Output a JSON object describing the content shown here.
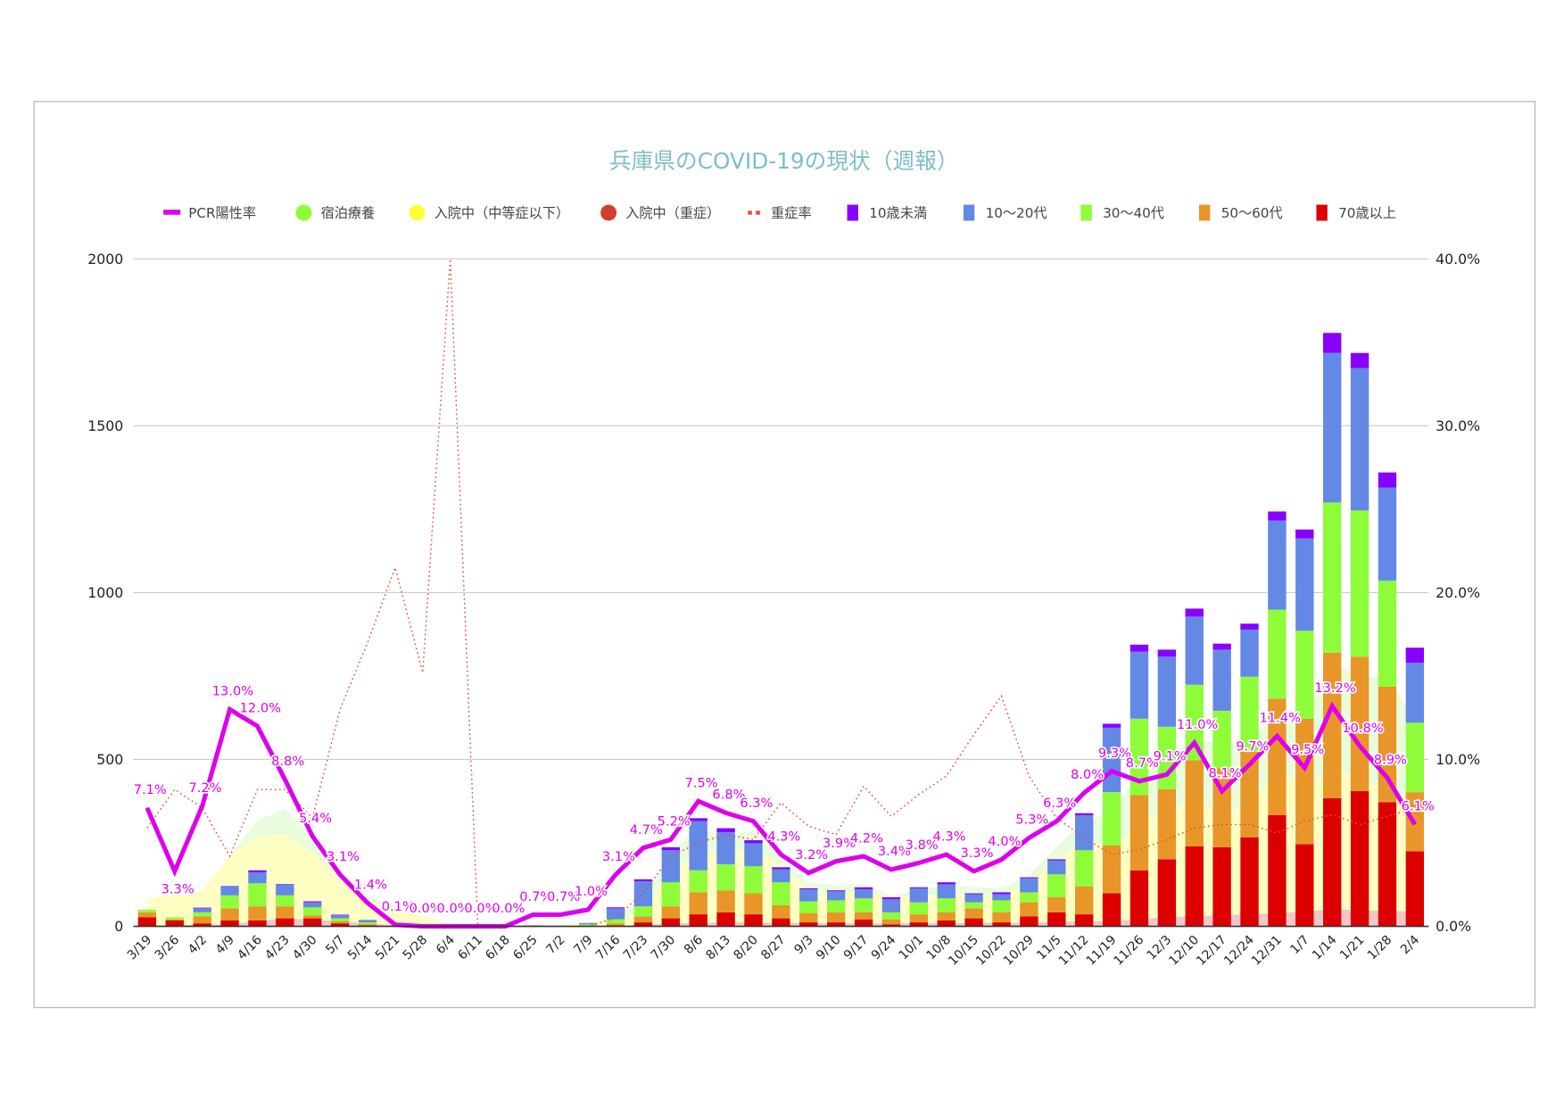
{
  "chart_data": {
    "type": "bar",
    "title": "兵庫県のCOVID-19の現状（週報）",
    "legend_position": "top",
    "grid": true,
    "categories": [
      "3/19",
      "3/26",
      "4/2",
      "4/9",
      "4/16",
      "4/23",
      "4/30",
      "5/7",
      "5/14",
      "5/21",
      "5/28",
      "6/4",
      "6/11",
      "6/18",
      "6/25",
      "7/2",
      "7/9",
      "7/16",
      "7/23",
      "7/30",
      "8/6",
      "8/13",
      "8/20",
      "8/27",
      "9/3",
      "9/10",
      "9/17",
      "9/24",
      "10/1",
      "10/8",
      "10/15",
      "10/22",
      "10/29",
      "11/5",
      "11/12",
      "11/19",
      "11/26",
      "12/3",
      "12/10",
      "12/17",
      "12/24",
      "12/31",
      "1/7",
      "1/14",
      "1/21",
      "1/28",
      "2/4"
    ],
    "left_axis": {
      "ylim": [
        0,
        2000
      ],
      "ticks": [
        "0",
        "500",
        "1000",
        "1500",
        "2000"
      ]
    },
    "right_axis": {
      "ylim": [
        0,
        40
      ],
      "ticks": [
        "0.0%",
        "10.0%",
        "20.0%",
        "30.0%",
        "40.0%"
      ]
    },
    "bar_series": [
      {
        "name": "70歳以上",
        "color": "#dd0000",
        "values": [
          27,
          18,
          9,
          18,
          18,
          24,
          24,
          9,
          3,
          0,
          0,
          0,
          0,
          0,
          0,
          0,
          0,
          3,
          12,
          24,
          36,
          42,
          36,
          24,
          12,
          12,
          21,
          6,
          12,
          18,
          24,
          12,
          30,
          42,
          36,
          99,
          168,
          201,
          240,
          237,
          267,
          333,
          246,
          384,
          405,
          372,
          225
        ]
      },
      {
        "name": "50〜60代",
        "color": "#e8962a",
        "values": [
          15,
          3,
          21,
          36,
          42,
          36,
          9,
          6,
          3,
          0,
          0,
          0,
          0,
          0,
          0,
          0,
          1,
          6,
          18,
          36,
          66,
          66,
          63,
          39,
          27,
          30,
          21,
          15,
          24,
          24,
          30,
          30,
          42,
          45,
          84,
          144,
          225,
          210,
          258,
          237,
          256,
          349,
          376,
          436,
          403,
          346,
          177
        ]
      },
      {
        "name": "30〜40代",
        "color": "#8ffc3a",
        "values": [
          8,
          6,
          12,
          39,
          69,
          33,
          24,
          9,
          6,
          0,
          0,
          0,
          0,
          0,
          0,
          0,
          5,
          12,
          30,
          72,
          66,
          78,
          81,
          69,
          36,
          36,
          42,
          21,
          36,
          42,
          18,
          36,
          30,
          69,
          108,
          159,
          229,
          187,
          226,
          172,
          225,
          267,
          264,
          450,
          438,
          318,
          208
        ]
      },
      {
        "name": "10〜20代",
        "color": "#6488e6",
        "values": [
          0,
          0,
          12,
          27,
          33,
          33,
          15,
          9,
          6,
          0,
          0,
          0,
          0,
          0,
          3,
          2,
          4,
          33,
          75,
          96,
          147,
          96,
          69,
          39,
          36,
          27,
          27,
          39,
          42,
          42,
          24,
          18,
          42,
          42,
          105,
          193,
          201,
          210,
          204,
          183,
          141,
          267,
          276,
          448,
          427,
          279,
          180
        ]
      },
      {
        "name": "10歳未満",
        "color": "#8800ff",
        "values": [
          0,
          0,
          2,
          1,
          6,
          1,
          3,
          2,
          1,
          0,
          0,
          0,
          0,
          0,
          0,
          0,
          0,
          3,
          6,
          9,
          9,
          12,
          9,
          6,
          3,
          3,
          6,
          6,
          3,
          6,
          3,
          6,
          3,
          3,
          6,
          12,
          21,
          21,
          24,
          18,
          18,
          27,
          27,
          60,
          45,
          45,
          45
        ]
      }
    ],
    "area_series": [
      {
        "name": "入院中（重症）",
        "color": "#f0c8c8",
        "values": [
          3,
          4,
          5,
          7,
          16,
          25,
          20,
          16,
          9,
          4,
          2,
          1,
          0,
          0,
          0,
          0,
          1,
          2,
          6,
          9,
          11,
          12,
          12,
          11,
          10,
          10,
          10,
          9,
          10,
          10,
          11,
          11,
          12,
          14,
          15,
          15,
          22,
          27,
          31,
          34,
          36,
          40,
          45,
          52,
          49,
          46,
          46
        ]
      },
      {
        "name": "入院中（中等症以下）",
        "color": "#ffffa0",
        "values": [
          80,
          92,
          102,
          205,
          249,
          251,
          201,
          124,
          69,
          48,
          27,
          6,
          0,
          0,
          1,
          3,
          8,
          18,
          36,
          158,
          214,
          204,
          226,
          173,
          94,
          90,
          94,
          73,
          85,
          90,
          84,
          80,
          119,
          179,
          250,
          217,
          285,
          312,
          352,
          296,
          338,
          410,
          392,
          411,
          405,
          346,
          324
        ]
      },
      {
        "name": "宿泊療養",
        "color": "#8ffc3a",
        "values": [
          0,
          0,
          0,
          0,
          52,
          77,
          49,
          27,
          14,
          4,
          2,
          0,
          0,
          0,
          0,
          0,
          2,
          7,
          44,
          53,
          71,
          53,
          49,
          27,
          27,
          24,
          23,
          9,
          18,
          22,
          23,
          22,
          22,
          45,
          53,
          107,
          156,
          169,
          174,
          218,
          178,
          187,
          204,
          330,
          294,
          352,
          254
        ]
      }
    ],
    "line_series": [
      {
        "name": "PCR陽性率",
        "color": "#dd00ee",
        "axis": "right",
        "unit": "%",
        "values": [
          7.1,
          3.3,
          7.2,
          13.0,
          12.0,
          8.8,
          5.4,
          3.1,
          1.4,
          0.1,
          0.0,
          0.0,
          0.0,
          0.0,
          0.7,
          0.7,
          1.0,
          3.1,
          4.7,
          5.2,
          7.5,
          6.8,
          6.3,
          4.3,
          3.2,
          3.9,
          4.2,
          3.4,
          3.8,
          4.3,
          3.3,
          4.0,
          5.3,
          6.3,
          8.0,
          9.3,
          8.7,
          9.1,
          11.0,
          8.1,
          9.7,
          11.4,
          9.5,
          13.2,
          10.8,
          8.9,
          6.1
        ],
        "labels": [
          "7.1%",
          "3.3%",
          "7.2%",
          "13.0%",
          "12.0%",
          "8.8%",
          "5.4%",
          "3.1%",
          "1.4%",
          "0.1%",
          "0.0%",
          "0.0%",
          "0.0%",
          "0.0%",
          "0.7%",
          "0.7%",
          "1.0%",
          "3.1%",
          "4.7%",
          "5.2%",
          "7.5%",
          "6.8%",
          "6.3%",
          "4.3%",
          "3.2%",
          "3.9%",
          "4.2%",
          "3.4%",
          "3.8%",
          "4.3%",
          "3.3%",
          "4.0%",
          "5.3%",
          "6.3%",
          "8.0%",
          "9.3%",
          "8.7%",
          "9.1%",
          "11.0%",
          "8.1%",
          "9.7%",
          "11.4%",
          "9.5%",
          "13.2%",
          "10.8%",
          "8.9%",
          "6.1%"
        ]
      },
      {
        "name": "重症率",
        "color": "#e05040",
        "axis": "right",
        "style": "dotted",
        "values": [
          5.9,
          8.2,
          7.1,
          4.2,
          8.2,
          8.2,
          6.5,
          13.0,
          17.0,
          21.5,
          15.2,
          40.0,
          0,
          0,
          0,
          0,
          0,
          0.5,
          2.0,
          4.2,
          5.0,
          5.5,
          5.2,
          7.4,
          6.0,
          5.5,
          8.4,
          6.6,
          7.9,
          9.0,
          11.5,
          13.8,
          9.0,
          6.5,
          5.3,
          4.3,
          4.6,
          5.2,
          5.9,
          6.1,
          6.1,
          5.6,
          6.3,
          6.7,
          6.1,
          6.6,
          7.1
        ]
      }
    ],
    "legend": [
      "PCR陽性率",
      "宿泊療養",
      "入院中（中等症以下）",
      "入院中（重症）",
      "重症率",
      "10歳未満",
      "10〜20代",
      "30〜40代",
      "50〜60代",
      "70歳以上"
    ],
    "legend_colors": [
      "#dd00ee",
      "#8ffc3a",
      "#ffff33",
      "#d04030",
      "#e05040",
      "#8800ff",
      "#6488e6",
      "#8ffc3a",
      "#e8962a",
      "#dd0000"
    ]
  }
}
